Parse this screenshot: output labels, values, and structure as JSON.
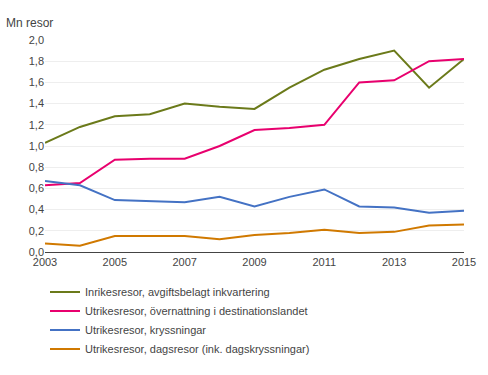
{
  "chart_data": {
    "type": "line",
    "ylabel": "Mn resor",
    "x": [
      2003,
      2004,
      2005,
      2006,
      2007,
      2008,
      2009,
      2010,
      2011,
      2012,
      2013,
      2014,
      2015
    ],
    "series": [
      {
        "name": "Inrikesresor, avgiftsbelagt inkvartering",
        "color": "#6b7a1a",
        "values": [
          1.03,
          1.18,
          1.28,
          1.3,
          1.4,
          1.37,
          1.35,
          1.55,
          1.72,
          1.82,
          1.9,
          1.55,
          1.82
        ]
      },
      {
        "name": "Utrikesresor, övernattning i destinationslandet",
        "color": "#e8006e",
        "values": [
          0.63,
          0.65,
          0.87,
          0.88,
          0.88,
          1.0,
          1.15,
          1.17,
          1.2,
          1.6,
          1.62,
          1.8,
          1.82
        ]
      },
      {
        "name": "Utrikesresor, kryssningar",
        "color": "#4472c4",
        "values": [
          0.67,
          0.63,
          0.49,
          0.48,
          0.47,
          0.52,
          0.43,
          0.52,
          0.59,
          0.43,
          0.42,
          0.37,
          0.39
        ]
      },
      {
        "name": "Utrikesresor, dagsresor (ink. dagskryssningar)",
        "color": "#d07900",
        "values": [
          0.08,
          0.06,
          0.15,
          0.15,
          0.15,
          0.12,
          0.16,
          0.18,
          0.21,
          0.18,
          0.19,
          0.25,
          0.26
        ]
      }
    ],
    "xlim": [
      2003,
      2015
    ],
    "ylim": [
      0.0,
      2.0
    ],
    "xticks": [
      2003,
      2005,
      2007,
      2009,
      2011,
      2013,
      2015
    ],
    "yticks": [
      {
        "value": 0.0,
        "label": "0,0"
      },
      {
        "value": 0.2,
        "label": "0,2"
      },
      {
        "value": 0.4,
        "label": "0,4"
      },
      {
        "value": 0.6,
        "label": "0,6"
      },
      {
        "value": 0.8,
        "label": "0,8"
      },
      {
        "value": 1.0,
        "label": "1,0"
      },
      {
        "value": 1.2,
        "label": "1,2"
      },
      {
        "value": 1.4,
        "label": "1,4"
      },
      {
        "value": 1.6,
        "label": "1,6"
      },
      {
        "value": 1.8,
        "label": "1,8"
      },
      {
        "value": 2.0,
        "label": "2,0"
      }
    ],
    "grid": "y",
    "legend": "bottom"
  }
}
